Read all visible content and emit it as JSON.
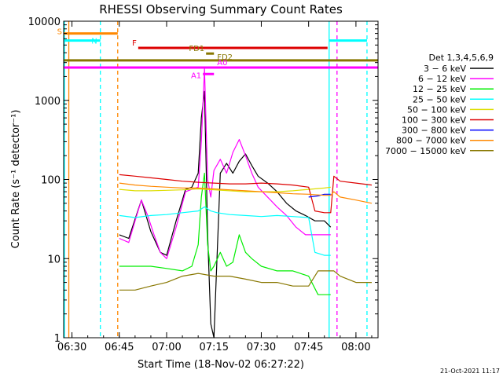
{
  "chart_data": {
    "type": "line",
    "title": "RHESSI Observing Summary Count Rates",
    "xlabel": "Start Time (18-Nov-02 06:27:22)",
    "ylabel": "Count Rate (s⁻¹ detector⁻¹)",
    "yscale": "log",
    "xlim": [
      "06:27:22",
      "08:07:00"
    ],
    "ylim": [
      1,
      10000
    ],
    "x_ticks": [
      "06:30",
      "06:45",
      "07:00",
      "07:15",
      "07:30",
      "07:45",
      "08:00"
    ],
    "y_ticks": [
      "1",
      "10",
      "100",
      "1000",
      "10000"
    ],
    "legend": {
      "title": "Det 1,3,4,5,6,9",
      "placement": "right",
      "entries": [
        {
          "label": "3 − 6 keV",
          "color": "#000000"
        },
        {
          "label": "6 − 12 keV",
          "color": "#ff00ff"
        },
        {
          "label": "12 − 25 keV",
          "color": "#00ee00"
        },
        {
          "label": "25 − 50 keV",
          "color": "#00ffff"
        },
        {
          "label": "50 − 100 keV",
          "color": "#dddd00"
        },
        {
          "label": "100 − 300 keV",
          "color": "#dd0000"
        },
        {
          "label": "300 − 800 keV",
          "color": "#0000ff"
        },
        {
          "label": "800 − 7000 keV",
          "color": "#ff8800"
        },
        {
          "label": "7000 − 15000 keV",
          "color": "#887700"
        }
      ]
    },
    "series": [
      {
        "name": "3 − 6 keV",
        "color": "#000000",
        "x": [
          "06:45",
          "06:48",
          "06:52",
          "06:55",
          "06:58",
          "07:00",
          "07:03",
          "07:06",
          "07:08",
          "07:10",
          "07:11",
          "07:12",
          "07:13",
          "07:14",
          "07:15",
          "07:17",
          "07:19",
          "07:21",
          "07:23",
          "07:25",
          "07:27",
          "07:29",
          "07:32",
          "07:35",
          "07:38",
          "07:41",
          "07:44",
          "07:47",
          "07:50",
          "07:52"
        ],
        "y": [
          20,
          18,
          55,
          22,
          12,
          11,
          30,
          75,
          80,
          120,
          600,
          1300,
          20,
          1.5,
          1,
          120,
          160,
          120,
          170,
          210,
          150,
          110,
          90,
          70,
          50,
          40,
          35,
          30,
          30,
          25
        ]
      },
      {
        "name": "6 − 12 keV",
        "color": "#ff00ff",
        "x": [
          "06:45",
          "06:48",
          "06:50",
          "06:52",
          "06:54",
          "06:56",
          "06:58",
          "07:00",
          "07:03",
          "07:06",
          "07:08",
          "07:10",
          "07:11",
          "07:12",
          "07:13",
          "07:14",
          "07:15",
          "07:17",
          "07:19",
          "07:21",
          "07:23",
          "07:25",
          "07:27",
          "07:29",
          "07:32",
          "07:35",
          "07:38",
          "07:41",
          "07:44",
          "07:47",
          "07:50",
          "07:52"
        ],
        "y": [
          18,
          16,
          30,
          55,
          35,
          20,
          12,
          10,
          25,
          70,
          75,
          80,
          300,
          2500,
          100,
          60,
          130,
          180,
          120,
          220,
          320,
          200,
          120,
          80,
          60,
          45,
          35,
          25,
          20,
          20,
          20,
          20
        ]
      },
      {
        "name": "12 − 25 keV",
        "color": "#00ee00",
        "x": [
          "06:45",
          "06:50",
          "06:55",
          "07:00",
          "07:05",
          "07:08",
          "07:10",
          "07:11",
          "07:12",
          "07:13",
          "07:14",
          "07:15",
          "07:17",
          "07:19",
          "07:21",
          "07:23",
          "07:25",
          "07:27",
          "07:30",
          "07:35",
          "07:40",
          "07:45",
          "07:48",
          "07:50",
          "07:52"
        ],
        "y": [
          8,
          8,
          8,
          7.5,
          7,
          8,
          15,
          60,
          120,
          15,
          7,
          8,
          12,
          8,
          9,
          20,
          12,
          10,
          8,
          7,
          7,
          6,
          3.5,
          3.5,
          3.5
        ]
      },
      {
        "name": "25 − 50 keV",
        "color": "#00ffff",
        "x": [
          "06:45",
          "06:50",
          "06:55",
          "07:00",
          "07:05",
          "07:10",
          "07:12",
          "07:14",
          "07:16",
          "07:20",
          "07:25",
          "07:30",
          "07:35",
          "07:40",
          "07:45",
          "07:47",
          "07:50",
          "07:52"
        ],
        "y": [
          35,
          33,
          35,
          36,
          38,
          40,
          45,
          40,
          38,
          36,
          35,
          34,
          35,
          34,
          33,
          12,
          11,
          11
        ]
      },
      {
        "name": "50 − 100 keV",
        "color": "#dddd00",
        "x": [
          "06:45",
          "06:50",
          "06:55",
          "07:00",
          "07:05",
          "07:10",
          "07:15",
          "07:20",
          "07:25",
          "07:30",
          "07:35",
          "07:40",
          "07:45",
          "07:50",
          "07:52"
        ],
        "y": [
          75,
          72,
          72,
          73,
          74,
          76,
          74,
          72,
          70,
          70,
          70,
          72,
          75,
          78,
          80
        ]
      },
      {
        "name": "100 − 300 keV",
        "color": "#dd0000",
        "x": [
          "06:45",
          "06:50",
          "06:55",
          "07:00",
          "07:05",
          "07:10",
          "07:15",
          "07:20",
          "07:25",
          "07:30",
          "07:35",
          "07:40",
          "07:45",
          "07:47",
          "07:50",
          "07:52",
          "07:53",
          "07:55",
          "08:00",
          "08:05"
        ],
        "y": [
          115,
          110,
          105,
          100,
          95,
          92,
          90,
          88,
          88,
          90,
          88,
          85,
          80,
          40,
          38,
          38,
          110,
          95,
          90,
          85
        ]
      },
      {
        "name": "300 − 800 keV",
        "color": "#0000ff",
        "x": [
          "07:45",
          "07:48",
          "07:50",
          "07:52"
        ],
        "y": [
          60,
          62,
          65,
          65
        ]
      },
      {
        "name": "800 − 7000 keV",
        "color": "#ff8800",
        "x": [
          "06:45",
          "06:50",
          "06:55",
          "07:00",
          "07:05",
          "07:10",
          "07:15",
          "07:20",
          "07:25",
          "07:30",
          "07:35",
          "07:40",
          "07:45",
          "07:50",
          "07:52",
          "07:53",
          "07:55",
          "08:00",
          "08:05"
        ],
        "y": [
          90,
          85,
          82,
          80,
          78,
          78,
          76,
          74,
          72,
          70,
          68,
          66,
          65,
          63,
          63,
          70,
          60,
          55,
          50
        ]
      },
      {
        "name": "7000 − 15000 keV",
        "color": "#887700",
        "x": [
          "06:45",
          "06:50",
          "06:55",
          "07:00",
          "07:05",
          "07:10",
          "07:15",
          "07:20",
          "07:25",
          "07:30",
          "07:35",
          "07:40",
          "07:45",
          "07:48",
          "07:50",
          "07:52",
          "07:53",
          "07:55",
          "08:00",
          "08:05"
        ],
        "y": [
          4,
          4,
          4.5,
          5,
          6,
          6.5,
          6,
          6,
          5.5,
          5,
          5,
          4.5,
          4.5,
          7,
          7,
          7,
          7,
          6,
          5,
          5
        ]
      }
    ],
    "flags": [
      {
        "label": "S",
        "color": "#ff8800",
        "y": 7000,
        "x_start": "06:27:22",
        "x_end": "06:44:30"
      },
      {
        "label": "N",
        "color": "#00ffff",
        "y": 5700,
        "x_start": "06:27:22",
        "x_end": "06:39:00"
      },
      {
        "label": "",
        "color": "#00ffff",
        "y": 5700,
        "x_start": "07:51:30",
        "x_end": "08:03:30"
      },
      {
        "label": "F",
        "color": "#dd0000",
        "y": 4600,
        "x_start": "06:51:00",
        "x_end": "07:51:00"
      },
      {
        "label": "FD1",
        "color": "#887700",
        "y": 3900,
        "x_start": "07:12:30",
        "x_end": "07:15:00"
      },
      {
        "label": "FD2",
        "color": "#887700",
        "y": 3200,
        "x_start": "06:27:22",
        "x_end": "08:07:00"
      },
      {
        "label": "A0",
        "color": "#ff00ff",
        "y": 2600,
        "x_start": "06:27:22",
        "x_end": "08:07:00"
      },
      {
        "label": "A1",
        "color": "#ff00ff",
        "y": 2150,
        "x_start": "07:11:30",
        "x_end": "07:15:00"
      }
    ],
    "markers": [
      {
        "color": "#00ffff",
        "style": "solid",
        "x": "06:27:22"
      },
      {
        "color": "#ff8800",
        "style": "solid",
        "x": "06:29:00"
      },
      {
        "color": "#00ffff",
        "style": "dashed",
        "x": "06:39:00"
      },
      {
        "color": "#ff8800",
        "style": "dashed",
        "x": "06:44:30"
      },
      {
        "color": "#00ffff",
        "style": "solid",
        "x": "07:51:30"
      },
      {
        "color": "#ff00ff",
        "style": "dashed",
        "x": "07:54:00"
      },
      {
        "color": "#00ffff",
        "style": "dashed",
        "x": "08:03:30"
      }
    ],
    "grid": false
  },
  "timestamp": "21-Oct-2021 11:17"
}
